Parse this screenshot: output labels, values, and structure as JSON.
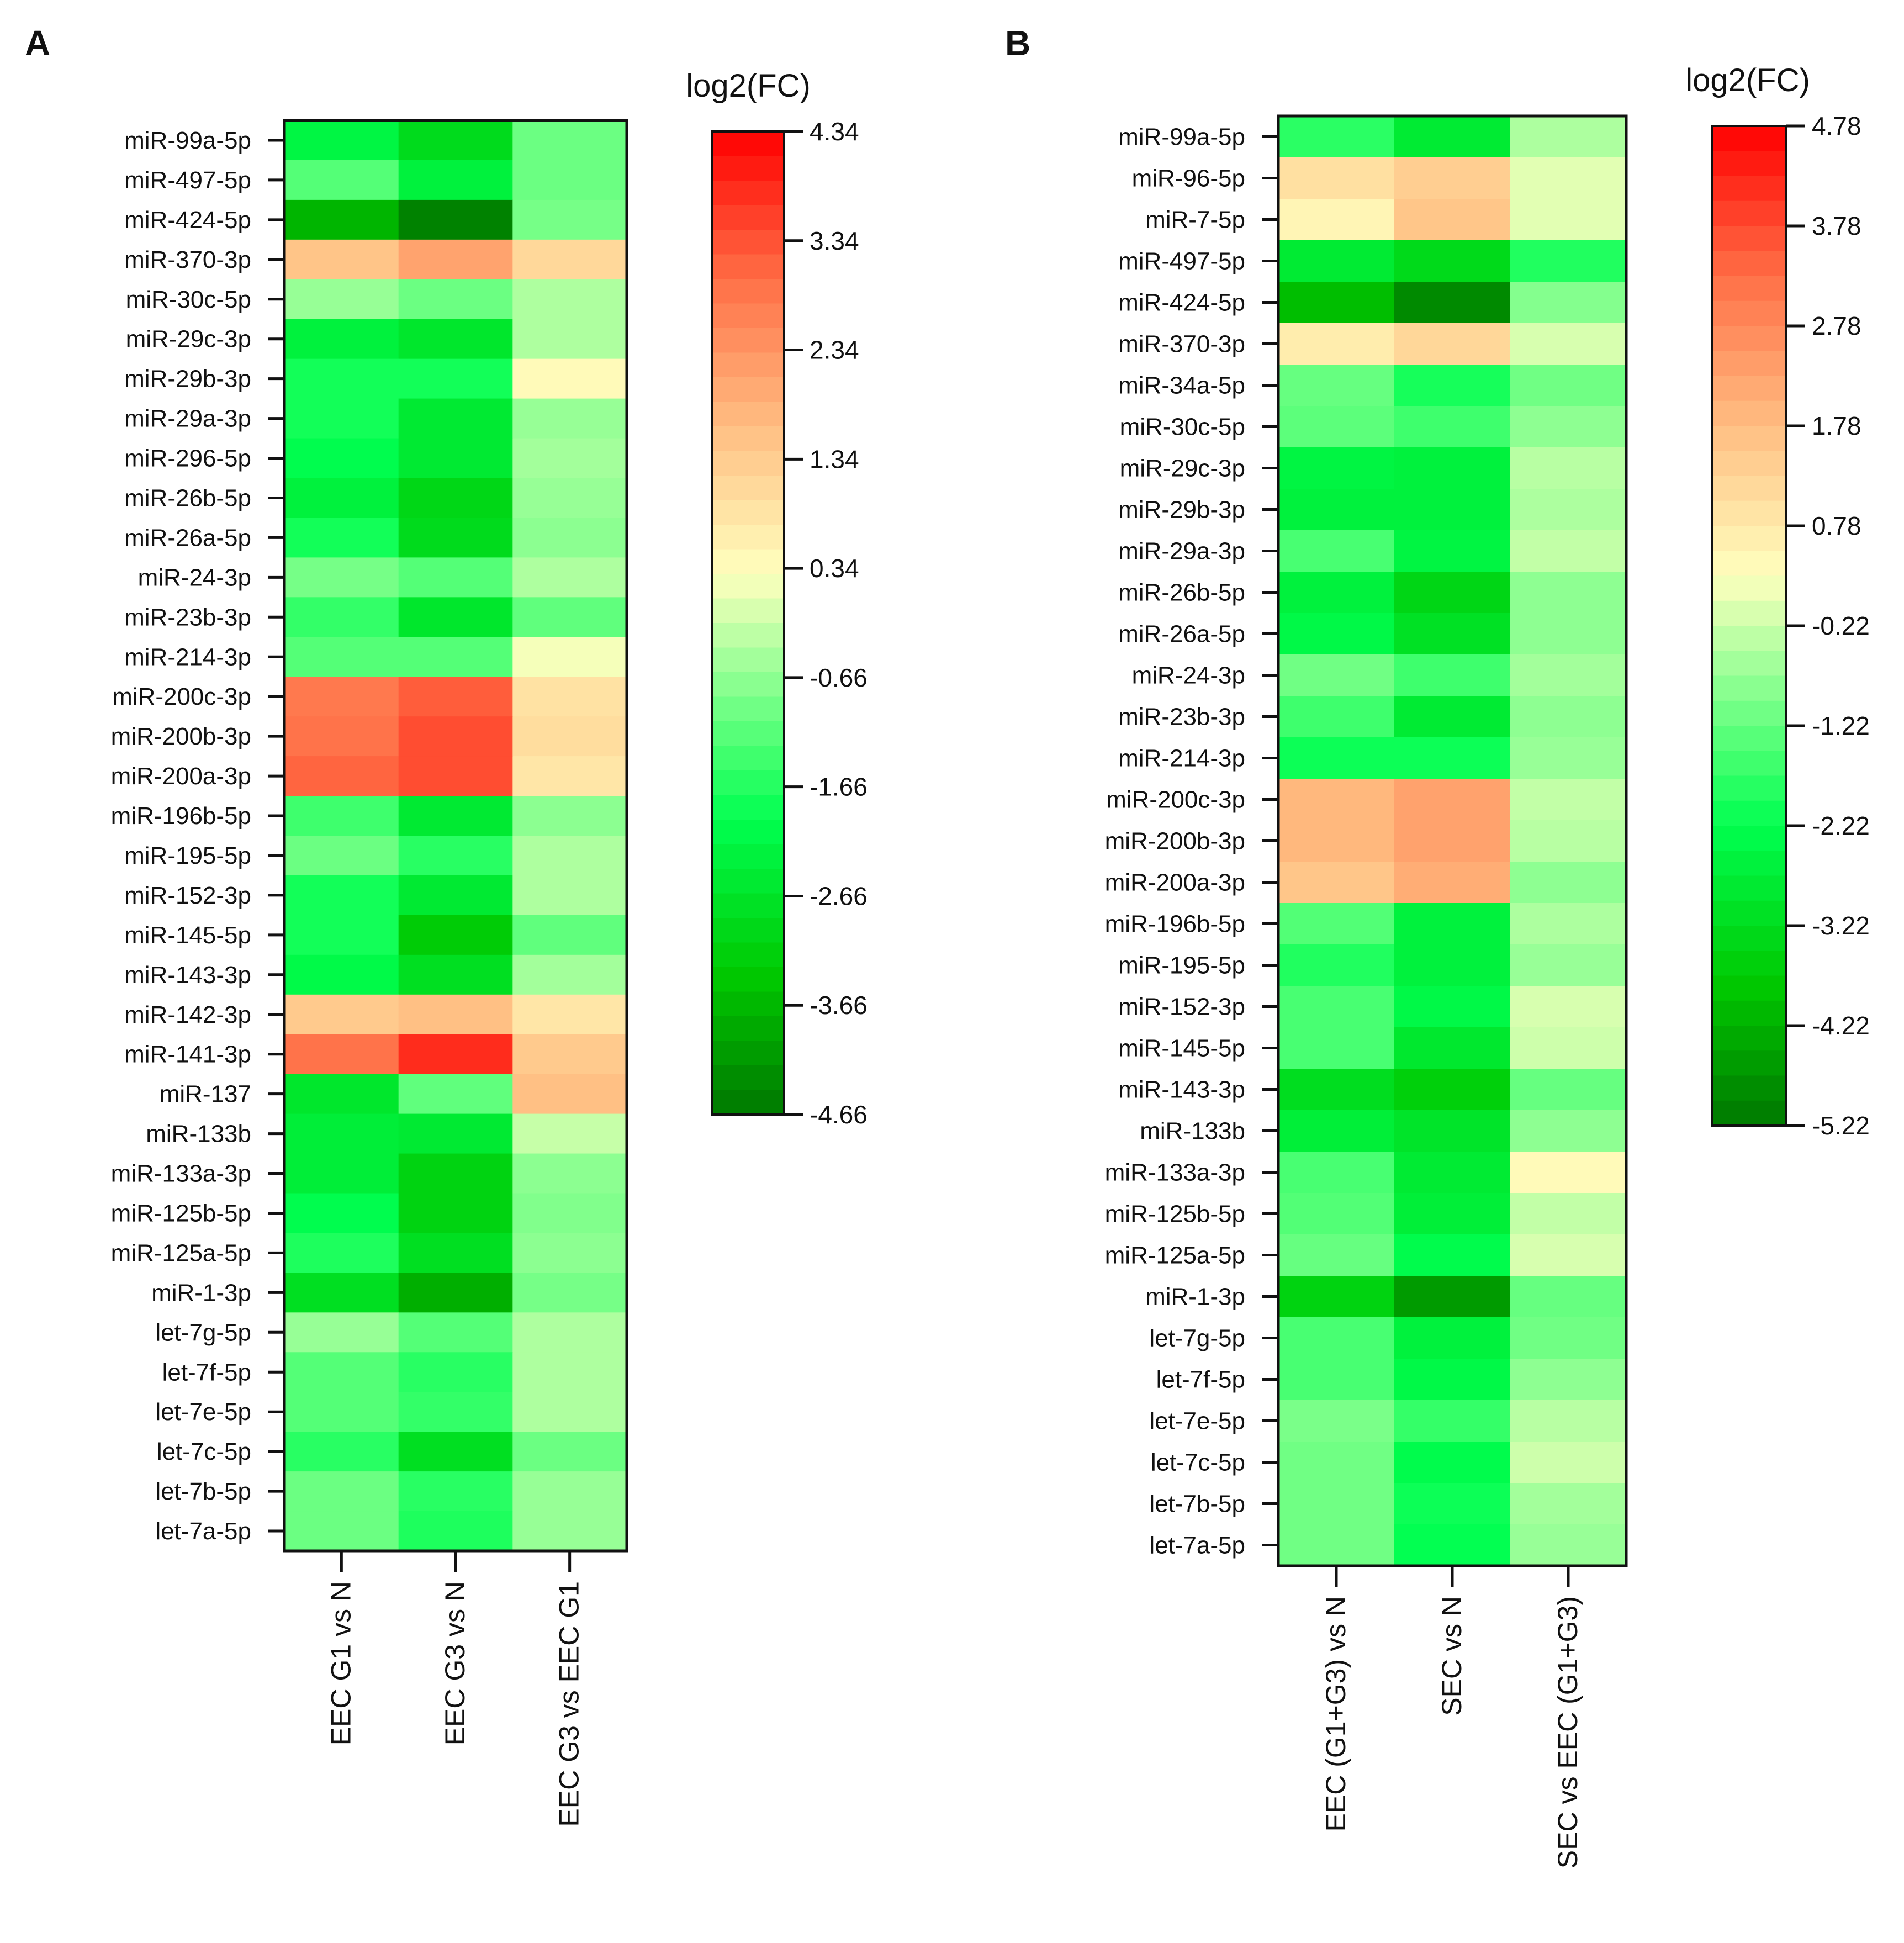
{
  "chart_data": [
    {
      "type": "heatmap",
      "panel_label": "A",
      "colorbar_title": "log2(FC)",
      "colorbar_ticks": [
        "4.34",
        "3.34",
        "2.34",
        "1.34",
        "0.34",
        "-0.66",
        "-1.66",
        "-2.66",
        "-3.66",
        "-4.66"
      ],
      "vmin": -4.66,
      "vmax": 4.34,
      "columns": [
        "EEC G1 vs N",
        "EEC G3 vs N",
        "EEC G3 vs EEC G1"
      ],
      "rows": [
        "miR-99a-5p",
        "miR-497-5p",
        "miR-424-5p",
        "miR-370-3p",
        "miR-30c-5p",
        "miR-29c-3p",
        "miR-29b-3p",
        "miR-29a-3p",
        "miR-296-5p",
        "miR-26b-5p",
        "miR-26a-5p",
        "miR-24-3p",
        "miR-23b-3p",
        "miR-214-3p",
        "miR-200c-3p",
        "miR-200b-3p",
        "miR-200a-3p",
        "miR-196b-5p",
        "miR-195-5p",
        "miR-152-3p",
        "miR-145-5p",
        "miR-143-3p",
        "miR-142-3p",
        "miR-141-3p",
        "miR-137",
        "miR-133b",
        "miR-133a-3p",
        "miR-125b-5p",
        "miR-125a-5p",
        "miR-1-3p",
        "let-7g-5p",
        "let-7f-5p",
        "let-7e-5p",
        "let-7c-5p",
        "let-7b-5p",
        "let-7a-5p"
      ],
      "values": [
        [
          -2.2,
          -2.9,
          -1.0
        ],
        [
          -1.2,
          -2.3,
          -1.0
        ],
        [
          -3.7,
          -4.5,
          -0.9
        ],
        [
          1.5,
          2.1,
          1.1
        ],
        [
          -0.6,
          -1.0,
          -0.4
        ],
        [
          -2.3,
          -2.6,
          -0.4
        ],
        [
          -1.8,
          -1.8,
          0.4
        ],
        [
          -1.8,
          -2.5,
          -0.6
        ],
        [
          -2.0,
          -2.5,
          -0.5
        ],
        [
          -2.3,
          -3.0,
          -0.6
        ],
        [
          -1.8,
          -2.9,
          -0.7
        ],
        [
          -0.9,
          -1.2,
          -0.4
        ],
        [
          -1.5,
          -2.6,
          -1.1
        ],
        [
          -1.2,
          -1.2,
          0.2
        ],
        [
          2.8,
          3.2,
          0.9
        ],
        [
          2.9,
          3.4,
          1.0
        ],
        [
          3.1,
          3.4,
          0.8
        ],
        [
          -1.4,
          -2.5,
          -0.7
        ],
        [
          -1.0,
          -1.6,
          -0.4
        ],
        [
          -1.8,
          -2.5,
          -0.4
        ],
        [
          -1.8,
          -3.3,
          -1.1
        ],
        [
          -2.1,
          -2.8,
          -0.5
        ],
        [
          1.4,
          1.6,
          0.8
        ],
        [
          2.9,
          3.8,
          1.4
        ],
        [
          -2.6,
          -1.1,
          1.6
        ],
        [
          -2.4,
          -2.5,
          -0.2
        ],
        [
          -2.4,
          -3.1,
          -0.7
        ],
        [
          -2.0,
          -3.1,
          -0.8
        ],
        [
          -1.7,
          -2.8,
          -0.7
        ],
        [
          -2.8,
          -3.8,
          -0.9
        ],
        [
          -0.6,
          -1.2,
          -0.4
        ],
        [
          -1.2,
          -1.6,
          -0.4
        ],
        [
          -1.2,
          -1.5,
          -0.4
        ],
        [
          -1.6,
          -2.8,
          -1.0
        ],
        [
          -1.0,
          -1.6,
          -0.6
        ],
        [
          -1.0,
          -1.7,
          -0.6
        ]
      ]
    },
    {
      "type": "heatmap",
      "panel_label": "B",
      "colorbar_title": "log2(FC)",
      "colorbar_ticks": [
        "4.78",
        "3.78",
        "2.78",
        "1.78",
        "0.78",
        "-0.22",
        "-1.22",
        "-2.22",
        "-3.22",
        "-4.22",
        "-5.22"
      ],
      "vmin": -5.22,
      "vmax": 4.78,
      "columns": [
        "EEC (G1+G3) vs N",
        "SEC vs N",
        "SEC vs EEC (G1+G3)"
      ],
      "rows": [
        "miR-99a-5p",
        "miR-96-5p",
        "miR-7-5p",
        "miR-497-5p",
        "miR-424-5p",
        "miR-370-3p",
        "miR-34a-5p",
        "miR-30c-5p",
        "miR-29c-3p",
        "miR-29b-3p",
        "miR-29a-3p",
        "miR-26b-5p",
        "miR-26a-5p",
        "miR-24-3p",
        "miR-23b-3p",
        "miR-214-3p",
        "miR-200c-3p",
        "miR-200b-3p",
        "miR-200a-3p",
        "miR-196b-5p",
        "miR-195-5p",
        "miR-152-3p",
        "miR-145-5p",
        "miR-143-3p",
        "miR-133b",
        "miR-133a-3p",
        "miR-125b-5p",
        "miR-125a-5p",
        "miR-1-3p",
        "let-7g-5p",
        "let-7f-5p",
        "let-7e-5p",
        "let-7c-5p",
        "let-7b-5p",
        "let-7a-5p"
      ],
      "values": [
        [
          -1.8,
          -2.8,
          -0.5
        ],
        [
          1.0,
          1.4,
          0.0
        ],
        [
          0.5,
          1.6,
          0.0
        ],
        [
          -2.8,
          -3.3,
          -1.9
        ],
        [
          -4.0,
          -4.9,
          -0.9
        ],
        [
          0.7,
          1.2,
          -0.1
        ],
        [
          -1.2,
          -2.0,
          -1.1
        ],
        [
          -1.3,
          -1.6,
          -0.8
        ],
        [
          -2.5,
          -2.6,
          -0.4
        ],
        [
          -2.6,
          -2.6,
          -0.5
        ],
        [
          -1.5,
          -2.5,
          -0.3
        ],
        [
          -2.6,
          -3.4,
          -0.8
        ],
        [
          -2.4,
          -3.1,
          -0.8
        ],
        [
          -1.1,
          -1.6,
          -0.6
        ],
        [
          -1.6,
          -2.8,
          -0.8
        ],
        [
          -2.1,
          -2.1,
          -0.7
        ],
        [
          1.9,
          2.3,
          -0.3
        ],
        [
          1.9,
          2.3,
          -0.4
        ],
        [
          1.6,
          2.1,
          -0.8
        ],
        [
          -1.4,
          -2.6,
          -0.5
        ],
        [
          -1.9,
          -2.6,
          -0.7
        ],
        [
          -1.5,
          -2.4,
          -0.1
        ],
        [
          -1.5,
          -2.9,
          -0.2
        ],
        [
          -3.2,
          -3.6,
          -1.2
        ],
        [
          -2.7,
          -3.0,
          -0.8
        ],
        [
          -1.5,
          -2.8,
          0.4
        ],
        [
          -1.4,
          -2.7,
          -0.3
        ],
        [
          -1.2,
          -2.3,
          -0.1
        ],
        [
          -3.5,
          -4.6,
          -1.2
        ],
        [
          -1.5,
          -2.6,
          -1.1
        ],
        [
          -1.5,
          -2.4,
          -0.8
        ],
        [
          -1.0,
          -1.7,
          -0.4
        ],
        [
          -1.1,
          -2.3,
          -0.2
        ],
        [
          -1.1,
          -2.1,
          -0.6
        ],
        [
          -1.1,
          -2.2,
          -0.7
        ]
      ]
    }
  ]
}
